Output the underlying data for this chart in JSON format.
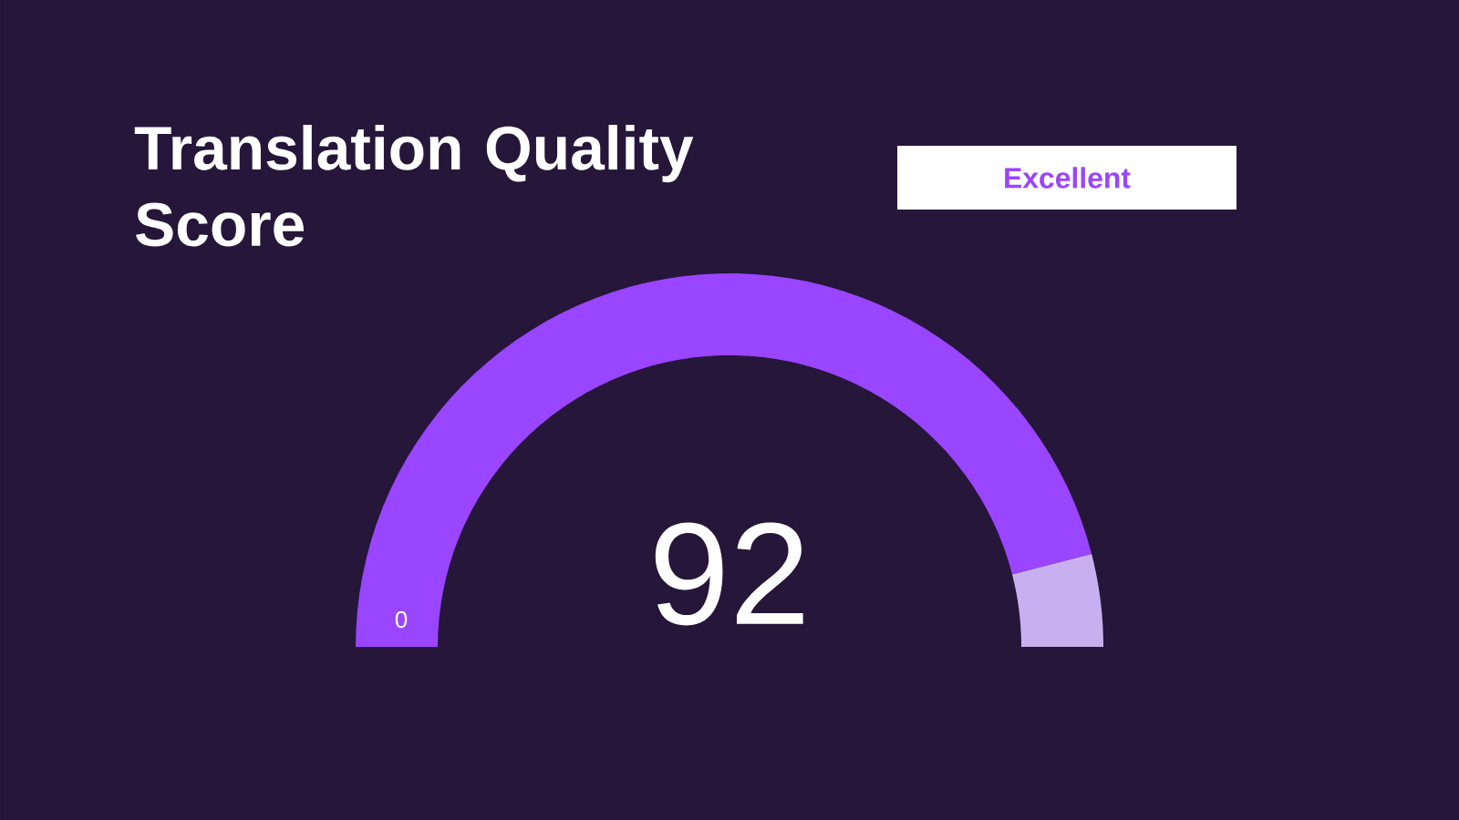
{
  "chart_data": {
    "type": "donut",
    "title": "Translation Quality Score",
    "categories": [
      null,
      null
    ],
    "values": [
      92,
      8
    ],
    "colors": [
      "#9a45ff",
      "#c8b0f0"
    ],
    "annotations": [
      "Excellent",
      "92",
      "0"
    ]
  }
}
